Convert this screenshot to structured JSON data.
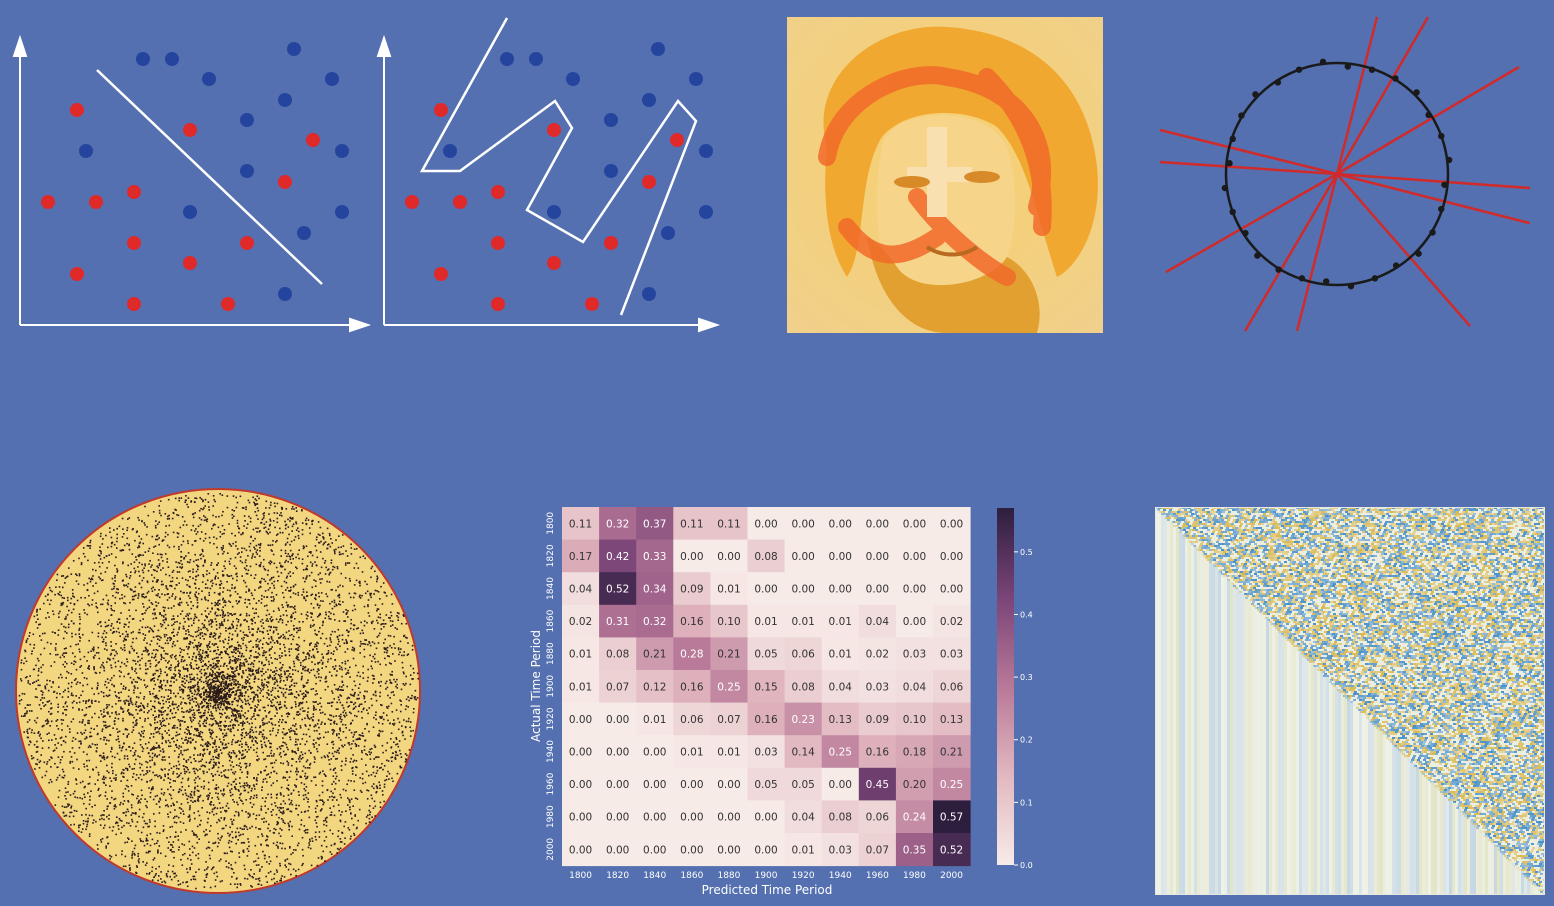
{
  "colors": {
    "background": "#5470b0",
    "point_red": "#e02a2a",
    "point_blue": "#24449e",
    "axis_white": "#ffffff",
    "portrait_base": "#f2b838",
    "portrait_overlay": "#f26a2a",
    "circle_fill": "#f2d680",
    "circle_edge": "#c0392b",
    "dot_dark": "#2a1a1a",
    "ransac_line": "#d02a2a",
    "heatmap_low": "#f7ebe8",
    "heatmap_high": "#2d1e3e",
    "texture_blue": "#4a90c8",
    "texture_yellow": "#d8b850"
  },
  "panels": {
    "linear_classifier": {
      "name": "linear separable scatter",
      "boundary": "linear"
    },
    "nonlinear_classifier": {
      "name": "nonlinear separable scatter",
      "boundary": "zigzag"
    },
    "portrait": {
      "name": "stylized portrait"
    },
    "ransac_circle": {
      "name": "circle fit with lines"
    },
    "random_disk": {
      "name": "dense point disk"
    },
    "texture_matrix": {
      "name": "triangular texture matrix"
    }
  },
  "chart_data": {
    "type": "heatmap",
    "title": "",
    "xlabel": "Predicted Time Period",
    "ylabel": "Actual Time Period",
    "x_categories": [
      "1800",
      "1820",
      "1840",
      "1860",
      "1880",
      "1900",
      "1920",
      "1940",
      "1960",
      "1980",
      "2000"
    ],
    "y_categories": [
      "1800",
      "1820",
      "1840",
      "1860",
      "1880",
      "1900",
      "1920",
      "1940",
      "1960",
      "1980",
      "2000"
    ],
    "values": [
      [
        0.11,
        0.32,
        0.37,
        0.11,
        0.11,
        0.0,
        0.0,
        0.0,
        0.0,
        0.0,
        0.0
      ],
      [
        0.17,
        0.42,
        0.33,
        0.0,
        0.0,
        0.08,
        0.0,
        0.0,
        0.0,
        0.0,
        0.0
      ],
      [
        0.04,
        0.52,
        0.34,
        0.09,
        0.01,
        0.0,
        0.0,
        0.0,
        0.0,
        0.0,
        0.0
      ],
      [
        0.02,
        0.31,
        0.32,
        0.16,
        0.1,
        0.01,
        0.01,
        0.01,
        0.04,
        0.0,
        0.02
      ],
      [
        0.01,
        0.08,
        0.21,
        0.28,
        0.21,
        0.05,
        0.06,
        0.01,
        0.02,
        0.03,
        0.03
      ],
      [
        0.01,
        0.07,
        0.12,
        0.16,
        0.25,
        0.15,
        0.08,
        0.04,
        0.03,
        0.04,
        0.06
      ],
      [
        0.0,
        0.0,
        0.01,
        0.06,
        0.07,
        0.16,
        0.23,
        0.13,
        0.09,
        0.1,
        0.13
      ],
      [
        0.0,
        0.0,
        0.0,
        0.01,
        0.01,
        0.03,
        0.14,
        0.25,
        0.16,
        0.18,
        0.21
      ],
      [
        0.0,
        0.0,
        0.0,
        0.0,
        0.0,
        0.05,
        0.05,
        0.0,
        0.45,
        0.2,
        0.25
      ],
      [
        0.0,
        0.0,
        0.0,
        0.0,
        0.0,
        0.0,
        0.04,
        0.08,
        0.06,
        0.24,
        0.57
      ],
      [
        0.0,
        0.0,
        0.0,
        0.0,
        0.0,
        0.0,
        0.01,
        0.03,
        0.07,
        0.35,
        0.52
      ]
    ],
    "colorbar_ticks": [
      "0.0",
      "0.1",
      "0.2",
      "0.3",
      "0.4",
      "0.5"
    ],
    "colorbar_range": [
      0,
      0.57
    ]
  }
}
